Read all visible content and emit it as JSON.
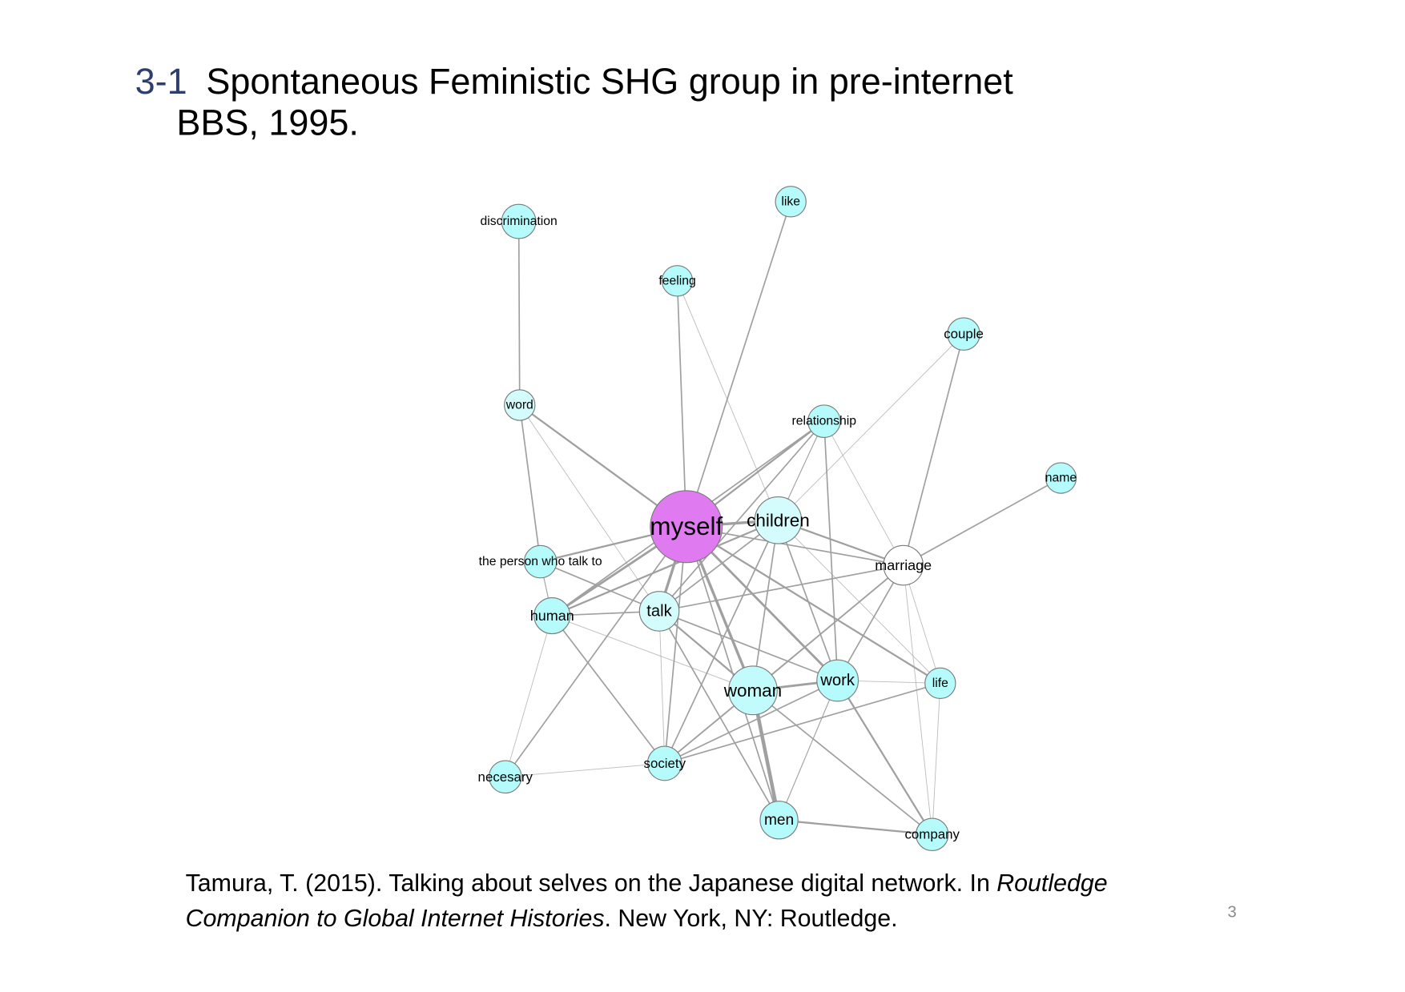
{
  "slide": {
    "title_number": "3-1",
    "title_line1": "Spontaneous Feministic SHG group in pre-internet",
    "title_line2": "BBS, 1995.",
    "citation_line1_plain": "Tamura, T. (2015). Talking about selves on the Japanese digital network. In ",
    "citation_line1_italic": "Routledge",
    "citation_line2_italic": "Companion to Global Internet Histories",
    "citation_line2_plain": ". New York, NY: Routledge.",
    "page_number": "3",
    "colors": {
      "title_number": "#2e3f6e",
      "edge": "#a0a0a0"
    }
  },
  "network": {
    "nodes": [
      {
        "label": "myself",
        "fill": "#e07af0"
      },
      {
        "label": "children",
        "fill": "#d4fcfc"
      },
      {
        "label": "marriage",
        "fill": "#ffffff"
      },
      {
        "label": "talk",
        "fill": "#d4fcfc"
      },
      {
        "label": "human",
        "fill": "#b5fbfb"
      },
      {
        "label": "the person who talk to",
        "fill": "#b5fbfb"
      },
      {
        "label": "word",
        "fill": "#d4fcfc"
      },
      {
        "label": "discrimination",
        "fill": "#b5fbfb"
      },
      {
        "label": "feeling",
        "fill": "#b5fbfb"
      },
      {
        "label": "like",
        "fill": "#b5fbfb"
      },
      {
        "label": "couple",
        "fill": "#b5fbfb"
      },
      {
        "label": "relationship",
        "fill": "#b5fbfb"
      },
      {
        "label": "name",
        "fill": "#b5fbfb"
      },
      {
        "label": "woman",
        "fill": "#c2fbfb"
      },
      {
        "label": "work",
        "fill": "#b5fbfb"
      },
      {
        "label": "life",
        "fill": "#b5fbfb"
      },
      {
        "label": "society",
        "fill": "#b5fbfb"
      },
      {
        "label": "necesary",
        "fill": "#b5fbfb"
      },
      {
        "label": "men",
        "fill": "#b5fbfb"
      },
      {
        "label": "company",
        "fill": "#b5fbfb"
      }
    ],
    "edges": [
      [
        "discrimination",
        "word",
        1.5
      ],
      [
        "word",
        "myself",
        2
      ],
      [
        "word",
        "the person who talk to",
        1.5
      ],
      [
        "word",
        "talk",
        0.8
      ],
      [
        "feeling",
        "myself",
        1.5
      ],
      [
        "feeling",
        "children",
        0.8
      ],
      [
        "like",
        "myself",
        1.5
      ],
      [
        "couple",
        "marriage",
        1.5
      ],
      [
        "couple",
        "children",
        0.8
      ],
      [
        "relationship",
        "myself",
        2
      ],
      [
        "relationship",
        "children",
        1
      ],
      [
        "relationship",
        "talk",
        1.5
      ],
      [
        "relationship",
        "work",
        1.5
      ],
      [
        "relationship",
        "marriage",
        0.8
      ],
      [
        "relationship",
        "human",
        1.5
      ],
      [
        "name",
        "marriage",
        1.5
      ],
      [
        "myself",
        "children",
        3
      ],
      [
        "myself",
        "marriage",
        1.5
      ],
      [
        "myself",
        "the person who talk to",
        2
      ],
      [
        "myself",
        "human",
        2.5
      ],
      [
        "myself",
        "talk",
        3
      ],
      [
        "myself",
        "woman",
        3
      ],
      [
        "myself",
        "work",
        2.5
      ],
      [
        "myself",
        "life",
        2
      ],
      [
        "myself",
        "society",
        1.5
      ],
      [
        "myself",
        "men",
        1.5
      ],
      [
        "myself",
        "necesary",
        1.5
      ],
      [
        "children",
        "marriage",
        2
      ],
      [
        "children",
        "human",
        2
      ],
      [
        "children",
        "talk",
        1.5
      ],
      [
        "children",
        "woman",
        1.5
      ],
      [
        "children",
        "work",
        1.5
      ],
      [
        "children",
        "society",
        1.5
      ],
      [
        "children",
        "life",
        0.8
      ],
      [
        "marriage",
        "talk",
        1.5
      ],
      [
        "marriage",
        "woman",
        1.5
      ],
      [
        "marriage",
        "work",
        1.5
      ],
      [
        "marriage",
        "life",
        0.8
      ],
      [
        "marriage",
        "company",
        0.8
      ],
      [
        "marriage",
        "society",
        1.5
      ],
      [
        "the person who talk to",
        "human",
        1
      ],
      [
        "the person who talk to",
        "talk",
        1.5
      ],
      [
        "human",
        "woman",
        0.8
      ],
      [
        "human",
        "talk",
        1.5
      ],
      [
        "human",
        "society",
        1.5
      ],
      [
        "human",
        "necesary",
        0.8
      ],
      [
        "talk",
        "woman",
        2
      ],
      [
        "talk",
        "work",
        1.5
      ],
      [
        "talk",
        "society",
        0.8
      ],
      [
        "talk",
        "men",
        1.5
      ],
      [
        "woman",
        "work",
        2.5
      ],
      [
        "woman",
        "men",
        4
      ],
      [
        "woman",
        "society",
        1.5
      ],
      [
        "woman",
        "company",
        1.5
      ],
      [
        "work",
        "society",
        1.5
      ],
      [
        "work",
        "men",
        1
      ],
      [
        "work",
        "company",
        2
      ],
      [
        "work",
        "life",
        0.8
      ],
      [
        "life",
        "society",
        1.5
      ],
      [
        "life",
        "company",
        0.8
      ],
      [
        "society",
        "necesary",
        0.8
      ],
      [
        "men",
        "company",
        2
      ]
    ]
  }
}
